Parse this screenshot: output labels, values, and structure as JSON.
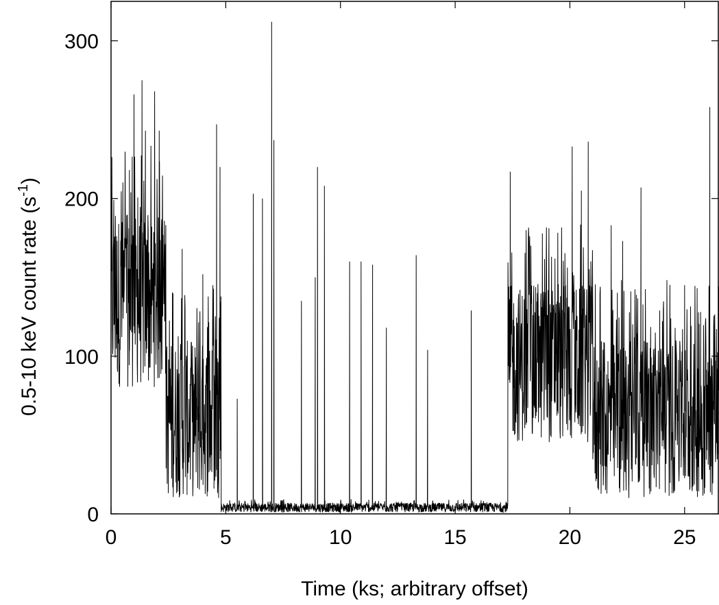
{
  "chart_data": {
    "type": "line",
    "title": "",
    "xlabel": "Time (ks; arbitrary offset)",
    "ylabel_main": "0.5-10 keV count rate (s",
    "ylabel_exp": "-1",
    "ylabel_close": ")",
    "xlim": [
      0,
      26.5
    ],
    "ylim": [
      0,
      325
    ],
    "xticks": [
      0,
      5,
      10,
      15,
      20,
      25
    ],
    "yticks": [
      0,
      100,
      200,
      300
    ],
    "xtick_labels": [
      "0",
      "5",
      "10",
      "15",
      "20",
      "25"
    ],
    "ytick_labels": [
      "0",
      "100",
      "200",
      "300"
    ],
    "grid": false,
    "line_color": "#000000",
    "segments": [
      {
        "x0": 0.0,
        "x1": 2.4,
        "base": 135,
        "spread": 55,
        "peak_prob": 0.18
      },
      {
        "x0": 2.4,
        "x1": 4.8,
        "base": 60,
        "spread": 50,
        "peak_prob": 0.15
      },
      {
        "x0": 4.8,
        "x1": 17.3,
        "base": 4,
        "spread": 3,
        "peak_prob": 0.06
      },
      {
        "x0": 17.3,
        "x1": 21.0,
        "base": 95,
        "spread": 50,
        "peak_prob": 0.15
      },
      {
        "x0": 21.0,
        "x1": 26.5,
        "base": 60,
        "spread": 50,
        "peak_prob": 0.15
      }
    ],
    "peaks": [
      {
        "x": 0.8,
        "y": 218
      },
      {
        "x": 1.0,
        "y": 266
      },
      {
        "x": 1.35,
        "y": 275
      },
      {
        "x": 1.5,
        "y": 243
      },
      {
        "x": 1.9,
        "y": 268
      },
      {
        "x": 2.1,
        "y": 243
      },
      {
        "x": 3.1,
        "y": 168
      },
      {
        "x": 4.0,
        "y": 152
      },
      {
        "x": 4.6,
        "y": 247
      },
      {
        "x": 4.75,
        "y": 220
      },
      {
        "x": 5.5,
        "y": 73
      },
      {
        "x": 6.2,
        "y": 203
      },
      {
        "x": 6.6,
        "y": 200
      },
      {
        "x": 7.0,
        "y": 312
      },
      {
        "x": 7.1,
        "y": 237
      },
      {
        "x": 8.3,
        "y": 135
      },
      {
        "x": 8.9,
        "y": 150
      },
      {
        "x": 9.0,
        "y": 220
      },
      {
        "x": 9.3,
        "y": 208
      },
      {
        "x": 10.4,
        "y": 160
      },
      {
        "x": 10.9,
        "y": 160
      },
      {
        "x": 11.4,
        "y": 158
      },
      {
        "x": 12.0,
        "y": 118
      },
      {
        "x": 13.3,
        "y": 164
      },
      {
        "x": 13.8,
        "y": 104
      },
      {
        "x": 15.7,
        "y": 129
      },
      {
        "x": 17.4,
        "y": 217
      },
      {
        "x": 18.3,
        "y": 170
      },
      {
        "x": 19.2,
        "y": 163
      },
      {
        "x": 20.1,
        "y": 233
      },
      {
        "x": 20.5,
        "y": 205
      },
      {
        "x": 20.8,
        "y": 236
      },
      {
        "x": 21.8,
        "y": 183
      },
      {
        "x": 22.3,
        "y": 173
      },
      {
        "x": 23.1,
        "y": 207
      },
      {
        "x": 24.4,
        "y": 124
      },
      {
        "x": 25.0,
        "y": 145
      },
      {
        "x": 25.7,
        "y": 128
      },
      {
        "x": 26.1,
        "y": 258
      }
    ]
  }
}
